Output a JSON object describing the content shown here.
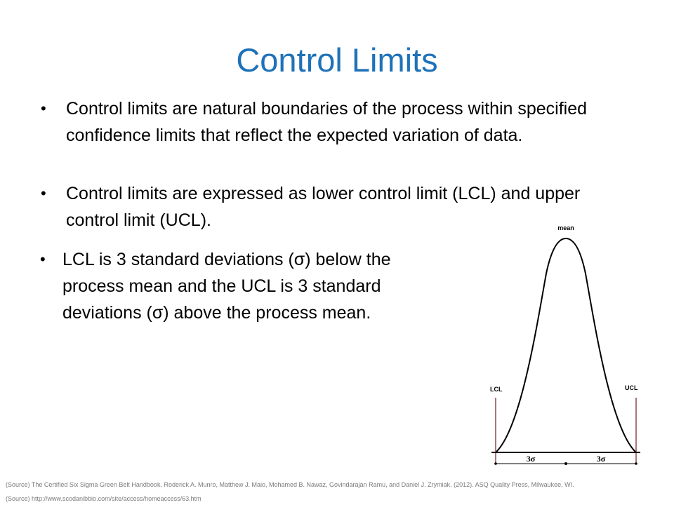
{
  "slide": {
    "title": "Control Limits",
    "bullets": [
      "Control limits are natural boundaries of the process within specified confidence limits that reflect the expected variation of data.",
      "Control limits are expressed as lower control limit (LCL) and upper control limit (UCL).",
      "LCL is 3 standard deviations (σ) below the process mean and the UCL is 3 standard deviations (σ) above the process mean."
    ],
    "bullet_glyph": "•"
  },
  "figure": {
    "mean_label": "mean",
    "lcl_label": "LCL",
    "ucl_label": "UCL",
    "left_sigma_label": "3σ",
    "right_sigma_label": "3σ"
  },
  "sources": [
    "(Source) The Certified Six Sigma Green Belt Handbook. Roderick A. Munro, Matthew J. Maio, Mohamed B. Nawaz, Govindarajan Ramu, and Daniel J. Zrymiak. (2012). ASQ Quality Press, Milwaukee, WI.",
    "(Source) http://www.scodanibbio.com/site/access/homeaccess/63.htm"
  ],
  "colors": {
    "title": "#1f72b8",
    "limit_lines": "#8b4a4a",
    "source_text": "#7a7a7a"
  }
}
